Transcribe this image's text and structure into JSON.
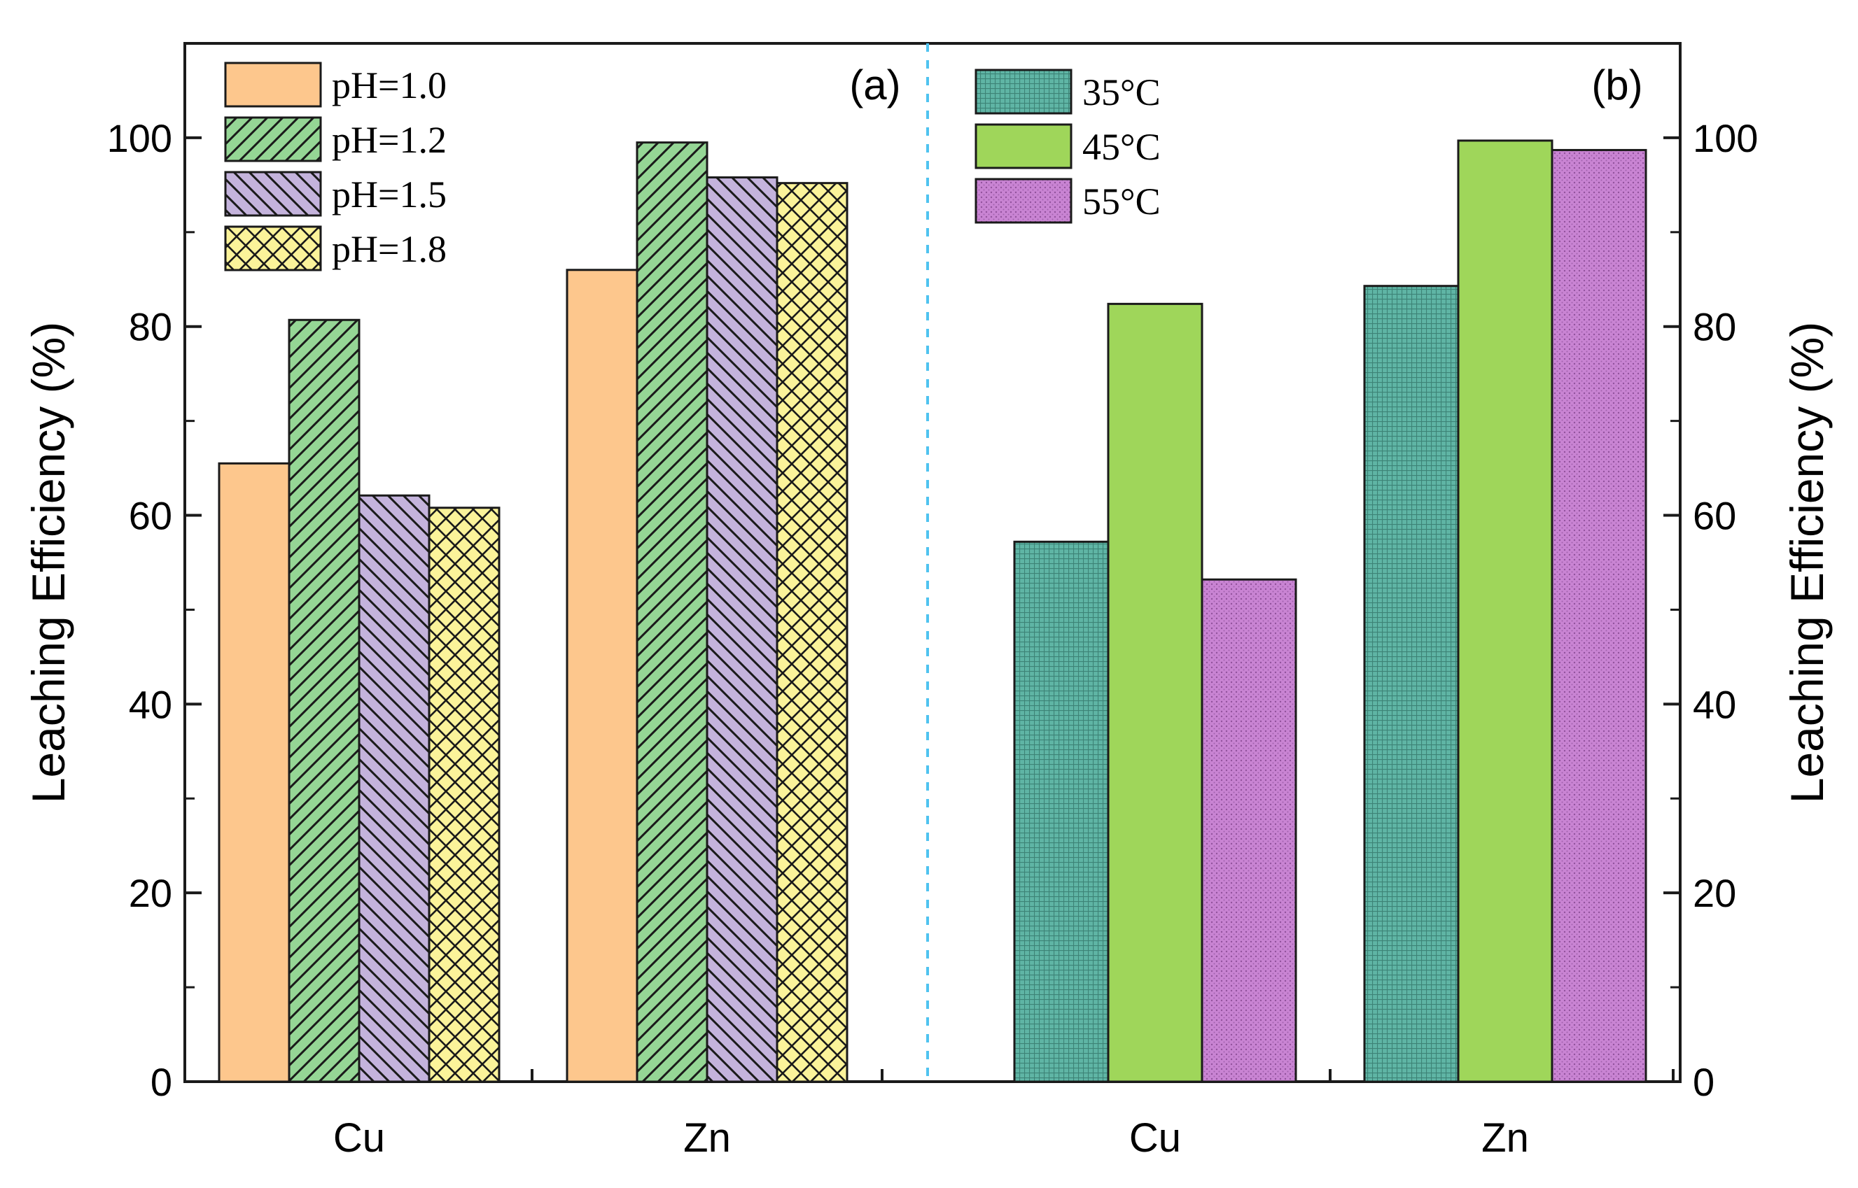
{
  "chart_data": [
    {
      "panel": "(a)",
      "type": "bar",
      "categories": [
        "Cu",
        "Zn"
      ],
      "ylabel": "Leaching Efficiency (%)",
      "ylim": [
        0,
        110
      ],
      "yticks": [
        0,
        20,
        40,
        60,
        80,
        100
      ],
      "legend_position": "top-left",
      "series": [
        {
          "name": "pH=1.0",
          "values": [
            65.5,
            86.0
          ],
          "color": "#FDC78D",
          "pattern": "none"
        },
        {
          "name": "pH=1.2",
          "values": [
            80.7,
            99.5
          ],
          "color": "#95D695",
          "pattern": "diag-up"
        },
        {
          "name": "pH=1.5",
          "values": [
            62.1,
            95.8
          ],
          "color": "#C4B3DC",
          "pattern": "diag-down"
        },
        {
          "name": "pH=1.8",
          "values": [
            60.8,
            95.2
          ],
          "color": "#FBF39A",
          "pattern": "crosshatch"
        }
      ]
    },
    {
      "panel": "(b)",
      "type": "bar",
      "categories": [
        "Cu",
        "Zn"
      ],
      "ylabel": "Leaching Efficiency (%)",
      "ylim": [
        0,
        110
      ],
      "yticks": [
        0,
        20,
        40,
        60,
        80,
        100
      ],
      "legend_position": "top-left",
      "series": [
        {
          "name": "35°C",
          "values": [
            57.2,
            84.3
          ],
          "color": "#5FB5A5",
          "pattern": "fine-grid"
        },
        {
          "name": "45°C",
          "values": [
            82.4,
            99.7
          ],
          "color": "#9FD65A",
          "pattern": "none"
        },
        {
          "name": "55°C",
          "values": [
            53.2,
            98.7
          ],
          "color": "#C984D3",
          "pattern": "fine-dots"
        }
      ]
    }
  ]
}
